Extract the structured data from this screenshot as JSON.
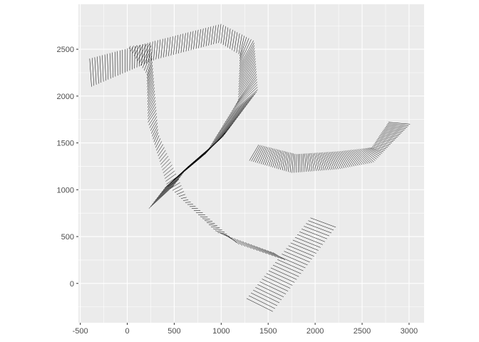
{
  "chart_data": {
    "type": "line",
    "title": "",
    "xlabel": "",
    "ylabel": "",
    "xlim": [
      -520,
      3160
    ],
    "ylim": [
      -420,
      2980
    ],
    "x_ticks": [
      -500,
      0,
      500,
      1000,
      1500,
      2000,
      2500,
      3000
    ],
    "x_tick_labels": [
      "-500",
      "0",
      "500",
      "1000",
      "1500",
      "2000",
      "2500",
      "3000"
    ],
    "y_ticks": [
      0,
      500,
      1000,
      1500,
      2000,
      2500
    ],
    "y_tick_labels": [
      "0",
      "500",
      "1000",
      "1500",
      "2000",
      "2500"
    ],
    "grid": true,
    "panel_background": "#ebebeb",
    "grid_color": "#ffffff",
    "segment_color": "#000000",
    "series": [
      {
        "left": [
          [
            -400,
            2400
          ],
          [
            300,
            2590
          ],
          [
            1000,
            2770
          ],
          [
            1350,
            2590
          ],
          [
            1390,
            2060
          ],
          [
            1030,
            1580
          ],
          [
            650,
            1250
          ],
          [
            500,
            1050
          ]
        ],
        "right": [
          [
            -380,
            2100
          ],
          [
            300,
            2390
          ],
          [
            980,
            2570
          ],
          [
            1200,
            2440
          ],
          [
            1180,
            1950
          ],
          [
            830,
            1380
          ],
          [
            400,
            1020
          ],
          [
            230,
            800
          ]
        ],
        "count": 135
      },
      {
        "left": [
          [
            0,
            2530
          ],
          [
            250,
            2560
          ],
          [
            330,
            1600
          ],
          [
            640,
            900
          ],
          [
            1180,
            420
          ],
          [
            1680,
            250
          ]
        ],
        "right": [
          [
            0,
            2530
          ],
          [
            210,
            2230
          ],
          [
            220,
            1720
          ],
          [
            420,
            1050
          ],
          [
            950,
            550
          ],
          [
            1550,
            330
          ]
        ],
        "count": 95
      },
      {
        "left": [
          [
            1400,
            1480
          ],
          [
            1800,
            1380
          ],
          [
            2250,
            1410
          ],
          [
            2600,
            1450
          ],
          [
            2780,
            1720
          ]
        ],
        "right": [
          [
            1300,
            1310
          ],
          [
            1750,
            1180
          ],
          [
            2250,
            1220
          ],
          [
            2620,
            1290
          ],
          [
            3010,
            1700
          ]
        ],
        "count": 90
      },
      {
        "left": [
          [
            1270,
            -160
          ],
          [
            1950,
            700
          ]
        ],
        "right": [
          [
            1550,
            -300
          ],
          [
            2220,
            600
          ]
        ],
        "count": 30
      }
    ]
  },
  "axes": {
    "x_tick_labels": [
      "-500",
      "0",
      "500",
      "1000",
      "1500",
      "2000",
      "2500",
      "3000"
    ],
    "y_tick_labels": [
      "0",
      "500",
      "1000",
      "1500",
      "2000",
      "2500"
    ]
  }
}
